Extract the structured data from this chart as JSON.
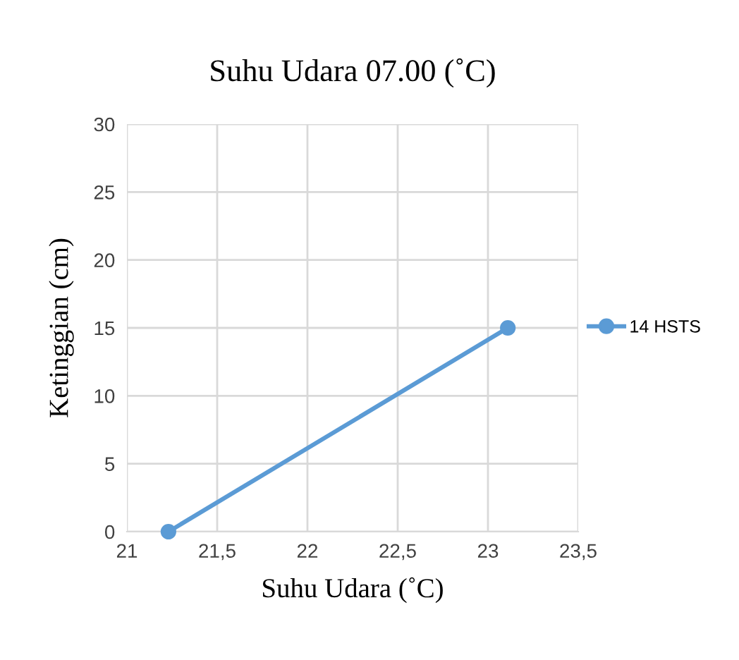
{
  "chart_data": {
    "type": "line",
    "title": "Suhu Udara 07.00 (˚C)",
    "xlabel": "Suhu Udara (˚C)",
    "ylabel": "Ketinggian (cm)",
    "x": [
      21.23,
      23.11
    ],
    "series": [
      {
        "name": "14 HSTS",
        "color": "#5b9bd5",
        "values": [
          0,
          15
        ]
      }
    ],
    "xlim": [
      21,
      23.5
    ],
    "xticks": [
      {
        "value": 21,
        "label": "21"
      },
      {
        "value": 21.5,
        "label": "21,5"
      },
      {
        "value": 22,
        "label": "22"
      },
      {
        "value": 22.5,
        "label": "22,5"
      },
      {
        "value": 23,
        "label": "23"
      },
      {
        "value": 23.5,
        "label": "23,5"
      }
    ],
    "ylim": [
      0,
      30
    ],
    "yticks": [
      0,
      5,
      10,
      15,
      20,
      25,
      30
    ],
    "grid": true,
    "legend": "right",
    "marker": "circle",
    "line_style": "solid"
  }
}
